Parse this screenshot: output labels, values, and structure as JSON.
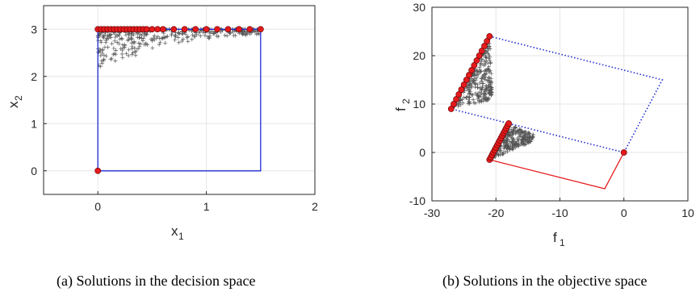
{
  "chart_data": [
    {
      "type": "scatter",
      "caption": "(a) Solutions in the decision space",
      "xlabel": "x",
      "xlabel_sub": "1",
      "ylabel": "x",
      "ylabel_sub": "2",
      "xlim": [
        -0.5,
        2
      ],
      "ylim": [
        -0.5,
        3.5
      ],
      "xticks": [
        0,
        1,
        2
      ],
      "yticks": [
        0,
        1,
        2,
        3
      ],
      "grid": true,
      "feasible_boundary": {
        "color": "#1f2bd1",
        "points": [
          [
            0,
            0
          ],
          [
            1.5,
            0
          ],
          [
            1.5,
            3
          ],
          [
            0,
            3
          ],
          [
            0,
            0
          ]
        ]
      },
      "optimal_solutions": {
        "color": "#e41a1c",
        "points": [
          [
            0,
            0
          ],
          [
            0,
            3
          ],
          [
            0.03,
            3
          ],
          [
            0.06,
            3
          ],
          [
            0.09,
            3
          ],
          [
            0.12,
            3
          ],
          [
            0.15,
            3
          ],
          [
            0.18,
            3
          ],
          [
            0.21,
            3
          ],
          [
            0.24,
            3
          ],
          [
            0.27,
            3
          ],
          [
            0.3,
            3
          ],
          [
            0.33,
            3
          ],
          [
            0.36,
            3
          ],
          [
            0.39,
            3
          ],
          [
            0.42,
            3
          ],
          [
            0.45,
            3
          ],
          [
            0.5,
            3
          ],
          [
            0.55,
            3
          ],
          [
            0.6,
            3
          ],
          [
            0.7,
            3
          ],
          [
            0.8,
            3
          ],
          [
            0.9,
            3
          ],
          [
            1.0,
            3
          ],
          [
            1.1,
            3
          ],
          [
            1.2,
            3
          ],
          [
            1.3,
            3
          ],
          [
            1.4,
            3
          ],
          [
            1.5,
            3
          ]
        ]
      }
    },
    {
      "type": "scatter",
      "caption": "(b) Solutions in the objective space",
      "xlabel": "f",
      "xlabel_sub": "1",
      "ylabel": "f",
      "ylabel_sub": "2",
      "xlim": [
        -30,
        10
      ],
      "ylim": [
        -10,
        30
      ],
      "xticks": [
        -30,
        -20,
        -10,
        0,
        10
      ],
      "yticks": [
        -10,
        0,
        10,
        20,
        30
      ],
      "grid": true,
      "dotted_boundary": {
        "color": "#1f2bd1",
        "points": [
          [
            -21,
            24
          ],
          [
            6,
            15
          ],
          [
            0,
            0
          ],
          [
            -27,
            9
          ],
          [
            -21,
            24
          ]
        ]
      },
      "red_boundary": {
        "color": "#e41a1c",
        "points": [
          [
            -21,
            -1.5
          ],
          [
            -3,
            -7.5
          ],
          [
            0,
            0
          ]
        ]
      },
      "upper_front": {
        "color": "#e41a1c",
        "points": [
          [
            -27,
            9
          ],
          [
            -26.6,
            10
          ],
          [
            -26.2,
            11
          ],
          [
            -25.8,
            12
          ],
          [
            -25.4,
            13
          ],
          [
            -25,
            14
          ],
          [
            -24.6,
            15
          ],
          [
            -24.2,
            16
          ],
          [
            -23.8,
            17
          ],
          [
            -23.4,
            18
          ],
          [
            -23,
            19
          ],
          [
            -22.6,
            20
          ],
          [
            -22.2,
            21
          ],
          [
            -21.8,
            22
          ],
          [
            -21.4,
            23
          ],
          [
            -21,
            24
          ]
        ]
      },
      "lower_front": {
        "color": "#e41a1c",
        "points": [
          [
            -21,
            -1.5
          ],
          [
            -20.8,
            -1
          ],
          [
            -20.6,
            -0.5
          ],
          [
            -20.4,
            0
          ],
          [
            -20.2,
            0.5
          ],
          [
            -20,
            1
          ],
          [
            -19.8,
            1.5
          ],
          [
            -19.6,
            2
          ],
          [
            -19.4,
            2.5
          ],
          [
            -19.2,
            3
          ],
          [
            -19,
            3.5
          ],
          [
            -18.8,
            4
          ],
          [
            -18.6,
            4.5
          ],
          [
            -18.4,
            5
          ],
          [
            -18.2,
            5.5
          ],
          [
            -18,
            6
          ],
          [
            0,
            0
          ]
        ]
      }
    }
  ]
}
